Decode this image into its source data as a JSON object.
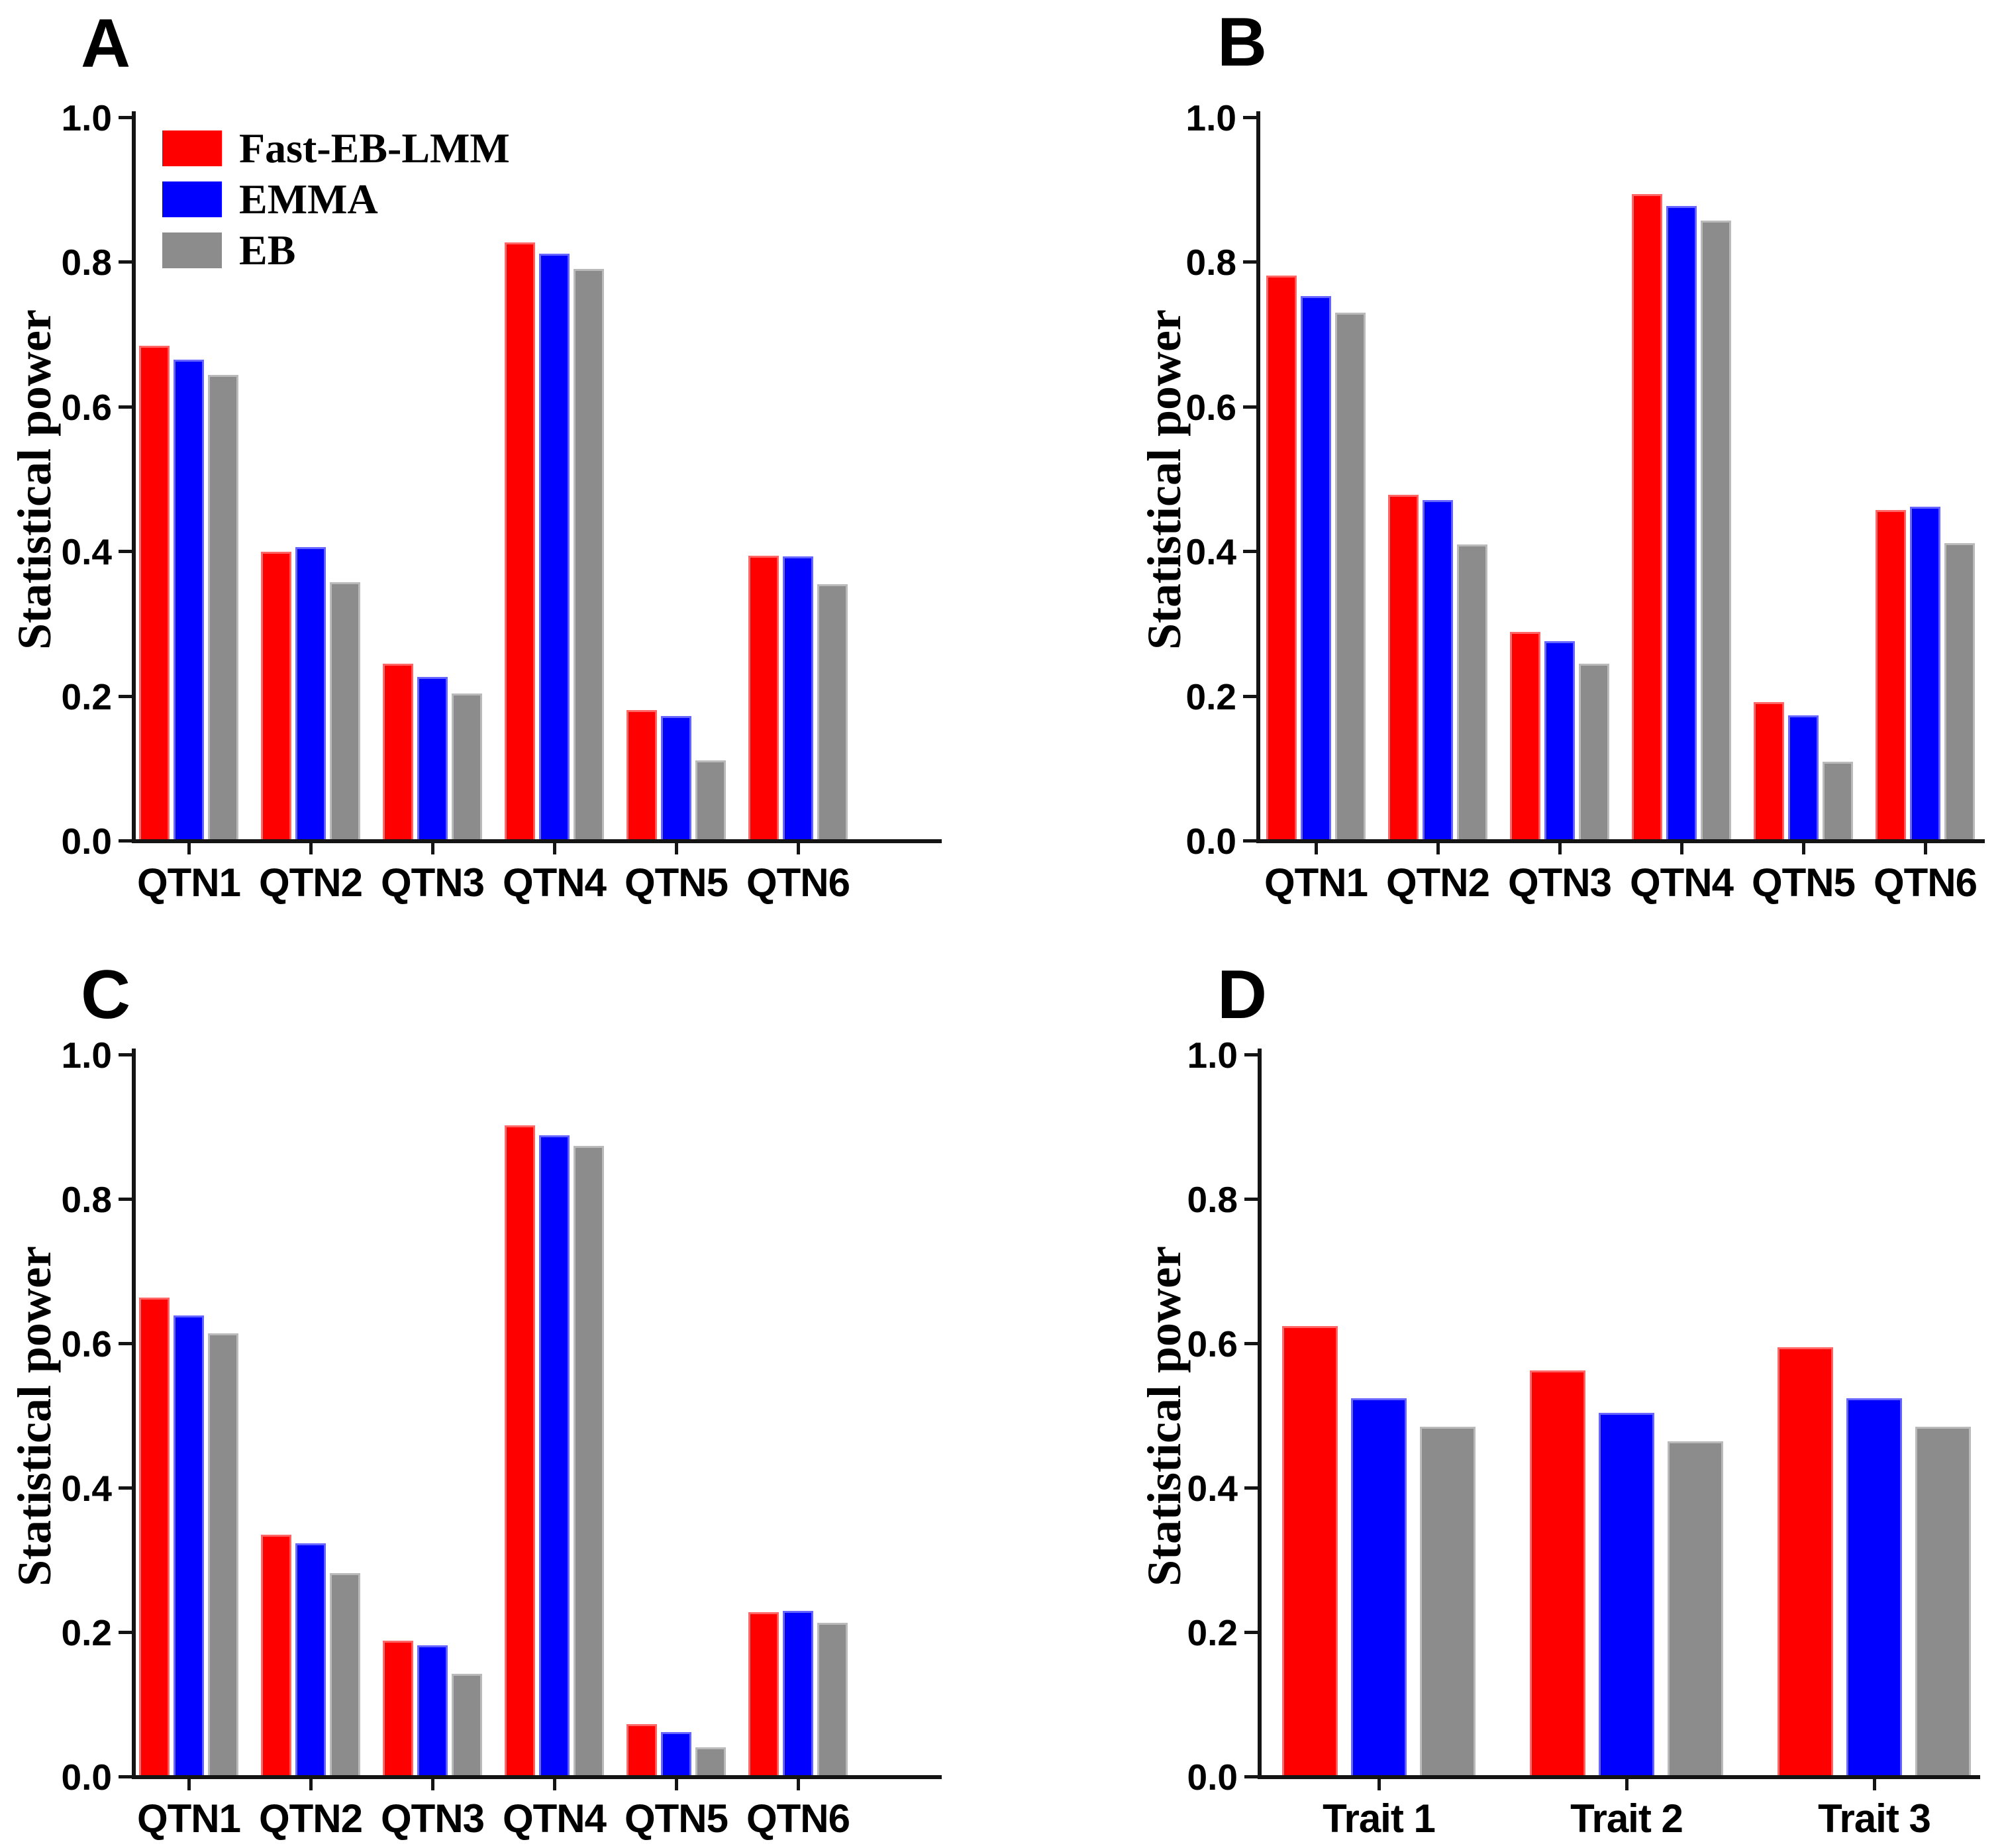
{
  "figure": {
    "background": "#ffffff",
    "y_axis_title": "Statistical power",
    "y_tick_labels": [
      "1.0",
      "0.8",
      "0.6",
      "0.4",
      "0.2",
      "0.0"
    ],
    "legend": {
      "position": "inside-top-left-of-panel-A",
      "items": [
        {
          "label": "Fast-EB-LMM",
          "color": "#ff0000"
        },
        {
          "label": "EMMA",
          "color": "#0000ff"
        },
        {
          "label": "EB",
          "color": "#8c8c8c"
        }
      ]
    },
    "colors": {
      "axis": "#141414",
      "text": "#000000"
    }
  },
  "chart_data": [
    {
      "panel": "A",
      "type": "bar",
      "ylabel": "Statistical power",
      "ylim": [
        0,
        1.0
      ],
      "grid": false,
      "categories": [
        "QTN1",
        "QTN2",
        "QTN3",
        "QTN4",
        "QTN5",
        "QTN6"
      ],
      "series": [
        {
          "name": "Fast-EB-LMM",
          "color": "#ff0000",
          "values": [
            0.685,
            0.4,
            0.245,
            0.828,
            0.181,
            0.395
          ]
        },
        {
          "name": "EMMA",
          "color": "#0000ff",
          "values": [
            0.666,
            0.407,
            0.227,
            0.812,
            0.173,
            0.394
          ]
        },
        {
          "name": "EB",
          "color": "#8c8c8c",
          "values": [
            0.645,
            0.358,
            0.204,
            0.791,
            0.112,
            0.355
          ]
        }
      ]
    },
    {
      "panel": "B",
      "type": "bar",
      "ylabel": "Statistical power",
      "ylim": [
        0,
        1.0
      ],
      "grid": false,
      "categories": [
        "QTN1",
        "QTN2",
        "QTN3",
        "QTN4",
        "QTN5",
        "QTN6"
      ],
      "series": [
        {
          "name": "Fast-EB-LMM",
          "color": "#ff0000",
          "values": [
            0.782,
            0.479,
            0.289,
            0.895,
            0.192,
            0.458
          ]
        },
        {
          "name": "EMMA",
          "color": "#0000ff",
          "values": [
            0.754,
            0.472,
            0.277,
            0.878,
            0.174,
            0.462
          ]
        },
        {
          "name": "EB",
          "color": "#8c8c8c",
          "values": [
            0.731,
            0.41,
            0.245,
            0.858,
            0.11,
            0.412
          ]
        }
      ]
    },
    {
      "panel": "C",
      "type": "bar",
      "ylabel": "Statistical power",
      "ylim": [
        0,
        1.0
      ],
      "grid": false,
      "categories": [
        "QTN1",
        "QTN2",
        "QTN3",
        "QTN4",
        "QTN5",
        "QTN6"
      ],
      "series": [
        {
          "name": "Fast-EB-LMM",
          "color": "#ff0000",
          "values": [
            0.664,
            0.336,
            0.189,
            0.903,
            0.073,
            0.228
          ]
        },
        {
          "name": "EMMA",
          "color": "#0000ff",
          "values": [
            0.639,
            0.324,
            0.183,
            0.889,
            0.062,
            0.23
          ]
        },
        {
          "name": "EB",
          "color": "#8c8c8c",
          "values": [
            0.615,
            0.283,
            0.143,
            0.874,
            0.041,
            0.214
          ]
        }
      ]
    },
    {
      "panel": "D",
      "type": "bar",
      "ylabel": "Statistical power",
      "ylim": [
        0,
        1.0
      ],
      "grid": false,
      "categories": [
        "Trait 1",
        "Trait 2",
        "Trait 3"
      ],
      "series": [
        {
          "name": "Fast-EB-LMM",
          "color": "#ff0000",
          "values": [
            0.625,
            0.563,
            0.595
          ]
        },
        {
          "name": "EMMA",
          "color": "#0000ff",
          "values": [
            0.525,
            0.505,
            0.525
          ]
        },
        {
          "name": "EB",
          "color": "#8c8c8c",
          "values": [
            0.485,
            0.465,
            0.485
          ]
        }
      ]
    }
  ]
}
